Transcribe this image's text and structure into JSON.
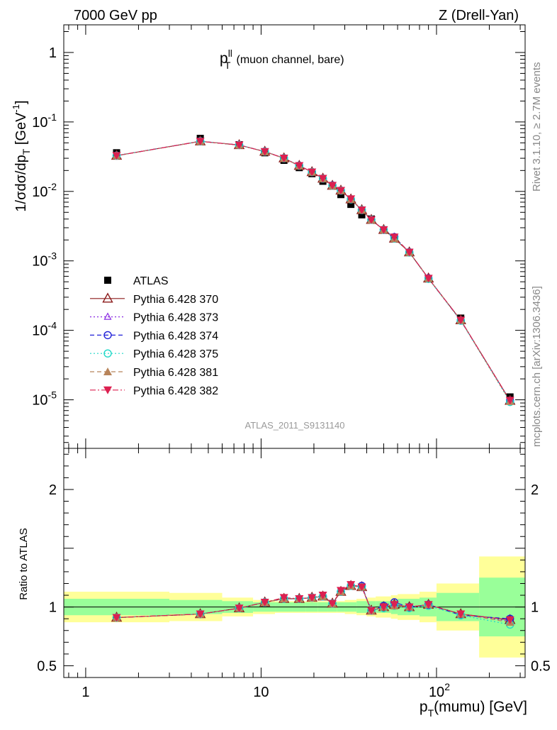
{
  "header": {
    "left": "7000 GeV pp",
    "right": "Z (Drell-Yan)"
  },
  "side_labels": {
    "top": "Rivet 3.1.10, ≥ 2.7M events",
    "bottom": "mcplots.cern.ch [arXiv:1306.3436]"
  },
  "watermark": "ATLAS_2011_S9131140",
  "colors": {
    "ATLAS": "#000000",
    "Pythia 6.428 370": "#8b1a1a",
    "Pythia 6.428 373": "#8a2be2",
    "Pythia 6.428 374": "#1f1fd8",
    "Pythia 6.428 375": "#20d8c8",
    "Pythia 6.428 381": "#b8845a",
    "Pythia 6.428 382": "#dc2050",
    "band_inner": "#99ff99",
    "band_outer": "#ffff99"
  },
  "chart_data": [
    {
      "type": "line",
      "title": "p_T^ll (muon channel, bare)",
      "title_parts": {
        "main": "p",
        "sup": "ll",
        "sub": "T",
        "rest": "(muon channel, bare)"
      },
      "ylabel": "1/σdσ/dp_T [GeV^-1]",
      "ylabel_parts": {
        "a": "1/σdσ/dp",
        "sub": "T",
        "b": " [GeV",
        "sup": "-1",
        "c": "]"
      },
      "xscale": "log",
      "yscale": "log",
      "xlim": [
        0.75,
        320
      ],
      "ylim": [
        2e-06,
        2.5
      ],
      "y_ticks": [
        {
          "value": 1,
          "base": "1",
          "exp": ""
        },
        {
          "value": 0.1,
          "base": "10",
          "exp": "-1"
        },
        {
          "value": 0.01,
          "base": "10",
          "exp": "-2"
        },
        {
          "value": 0.001,
          "base": "10",
          "exp": "-3"
        },
        {
          "value": 0.0001,
          "base": "10",
          "exp": "-4"
        },
        {
          "value": 1e-05,
          "base": "10",
          "exp": "-5"
        }
      ],
      "x": [
        1.5,
        4.5,
        7.5,
        10.5,
        13.5,
        16.5,
        19.5,
        22.5,
        25.5,
        28.5,
        32.5,
        37.5,
        42.5,
        50,
        57.5,
        70,
        90,
        137.5,
        262.5
      ],
      "legend_position": "left-middle",
      "series": [
        {
          "name": "ATLAS",
          "marker": "square-filled",
          "values": [
            0.036,
            0.058,
            0.047,
            0.036,
            0.028,
            0.022,
            0.018,
            0.014,
            0.012,
            0.009,
            0.0065,
            0.0046,
            0.004,
            0.0028,
            0.0021,
            0.00133,
            0.00055,
            0.00015,
            1.1e-05
          ]
        },
        {
          "name": "Pythia 6.428 370",
          "marker": "triangle-up-open",
          "dash": "",
          "values": [
            0.0327,
            0.0526,
            0.0465,
            0.0374,
            0.03,
            0.0234,
            0.019,
            0.0153,
            0.0121,
            0.0103,
            0.0077,
            0.0054,
            0.0039,
            0.0028,
            0.0021,
            0.00133,
            0.00056,
            0.00014,
            9.7e-06
          ]
        },
        {
          "name": "Pythia 6.428 373",
          "marker": "triangle-up-open-small",
          "dash": "2,3",
          "values": [
            0.0327,
            0.0526,
            0.0465,
            0.0374,
            0.03,
            0.0234,
            0.019,
            0.0153,
            0.0121,
            0.0103,
            0.0077,
            0.0054,
            0.0039,
            0.0028,
            0.0021,
            0.00133,
            0.00056,
            0.00014,
            9.7e-06
          ]
        },
        {
          "name": "Pythia 6.428 374",
          "marker": "circle-open",
          "dash": "6,4",
          "values": [
            0.0328,
            0.0527,
            0.0466,
            0.0375,
            0.0301,
            0.0235,
            0.019,
            0.0153,
            0.0122,
            0.0103,
            0.0077,
            0.0054,
            0.0039,
            0.0028,
            0.0022,
            0.00133,
            0.00056,
            0.000138,
            9.7e-06
          ]
        },
        {
          "name": "Pythia 6.428 375",
          "marker": "circle-open",
          "dash": "2,3",
          "values": [
            0.0327,
            0.0526,
            0.0465,
            0.0374,
            0.03,
            0.0234,
            0.019,
            0.0153,
            0.0121,
            0.0103,
            0.0077,
            0.0054,
            0.0039,
            0.0028,
            0.0021,
            0.00132,
            0.00055,
            0.000138,
            9.3e-06
          ]
        },
        {
          "name": "Pythia 6.428 381",
          "marker": "triangle-up-filled",
          "dash": "6,4",
          "values": [
            0.0327,
            0.0526,
            0.0465,
            0.0374,
            0.03,
            0.0234,
            0.019,
            0.0153,
            0.0121,
            0.0103,
            0.0077,
            0.0054,
            0.0039,
            0.0028,
            0.0021,
            0.00133,
            0.00056,
            0.00014,
            9.5e-06
          ]
        },
        {
          "name": "Pythia 6.428 382",
          "marker": "triangle-down-filled",
          "dash": "8,3,2,3",
          "values": [
            0.0327,
            0.0526,
            0.0465,
            0.0374,
            0.0301,
            0.0235,
            0.019,
            0.0154,
            0.0122,
            0.0103,
            0.0078,
            0.0054,
            0.0039,
            0.0028,
            0.0022,
            0.00133,
            0.00056,
            0.00014,
            9.8e-06
          ]
        }
      ]
    },
    {
      "type": "line",
      "ylabel": "Ratio to ATLAS",
      "xlabel": "p_T(mumu) [GeV]",
      "xlabel_parts": {
        "a": "p",
        "sub": "T",
        "b": "(mumu) [GeV]"
      },
      "xscale": "log",
      "xlim": [
        0.75,
        320
      ],
      "ylim": [
        0.4,
        2.35
      ],
      "y_ticks": [
        "0.5",
        "1",
        "2"
      ],
      "x_ticks": [
        {
          "value": 1,
          "base": "1",
          "exp": ""
        },
        {
          "value": 10,
          "base": "10",
          "exp": ""
        },
        {
          "value": 100,
          "base": "10",
          "exp": "2"
        }
      ],
      "x": [
        1.5,
        4.5,
        7.5,
        10.5,
        13.5,
        16.5,
        19.5,
        22.5,
        25.5,
        28.5,
        32.5,
        37.5,
        42.5,
        50,
        57.5,
        70,
        90,
        137.5,
        262.5
      ],
      "bands": {
        "edges": [
          0.75,
          3,
          6,
          9,
          12,
          15,
          18,
          21,
          24,
          27,
          30,
          35,
          40,
          45,
          55,
          60,
          80,
          100,
          175,
          320
        ],
        "inner": [
          0.07,
          0.06,
          0.05,
          0.04,
          0.04,
          0.04,
          0.04,
          0.04,
          0.04,
          0.04,
          0.04,
          0.05,
          0.05,
          0.05,
          0.06,
          0.07,
          0.08,
          0.12,
          0.25
        ],
        "outer": [
          0.13,
          0.12,
          0.08,
          0.06,
          0.05,
          0.05,
          0.05,
          0.05,
          0.05,
          0.05,
          0.06,
          0.07,
          0.08,
          0.09,
          0.1,
          0.11,
          0.13,
          0.2,
          0.43
        ]
      },
      "series": [
        {
          "name": "Pythia 6.428 370",
          "values": [
            0.91,
            0.94,
            0.99,
            1.04,
            1.07,
            1.07,
            1.08,
            1.09,
            1.03,
            1.13,
            1.18,
            1.17,
            0.97,
            1.0,
            1.02,
            1.0,
            1.02,
            0.94,
            0.89
          ]
        },
        {
          "name": "Pythia 6.428 373",
          "values": [
            0.91,
            0.94,
            0.99,
            1.04,
            1.07,
            1.07,
            1.08,
            1.09,
            1.03,
            1.13,
            1.18,
            1.17,
            0.97,
            1.0,
            1.02,
            1.0,
            1.02,
            0.94,
            0.88
          ]
        },
        {
          "name": "Pythia 6.428 374",
          "values": [
            0.91,
            0.94,
            0.99,
            1.04,
            1.07,
            1.07,
            1.08,
            1.09,
            1.03,
            1.13,
            1.18,
            1.18,
            0.97,
            1.01,
            1.04,
            1.0,
            1.02,
            0.93,
            0.9
          ]
        },
        {
          "name": "Pythia 6.428 375",
          "values": [
            0.91,
            0.94,
            0.99,
            1.04,
            1.07,
            1.07,
            1.08,
            1.09,
            1.03,
            1.13,
            1.18,
            1.17,
            0.97,
            0.99,
            1.01,
            0.99,
            1.01,
            0.93,
            0.85
          ]
        },
        {
          "name": "Pythia 6.428 381",
          "values": [
            0.91,
            0.94,
            0.99,
            1.04,
            1.07,
            1.07,
            1.08,
            1.09,
            1.03,
            1.13,
            1.18,
            1.17,
            0.97,
            1.0,
            1.01,
            1.0,
            1.02,
            0.94,
            0.87
          ]
        },
        {
          "name": "Pythia 6.428 382",
          "values": [
            0.91,
            0.94,
            0.99,
            1.04,
            1.08,
            1.07,
            1.08,
            1.1,
            1.03,
            1.14,
            1.19,
            1.17,
            0.97,
            1.0,
            1.02,
            1.0,
            1.02,
            0.94,
            0.89
          ]
        }
      ]
    }
  ]
}
